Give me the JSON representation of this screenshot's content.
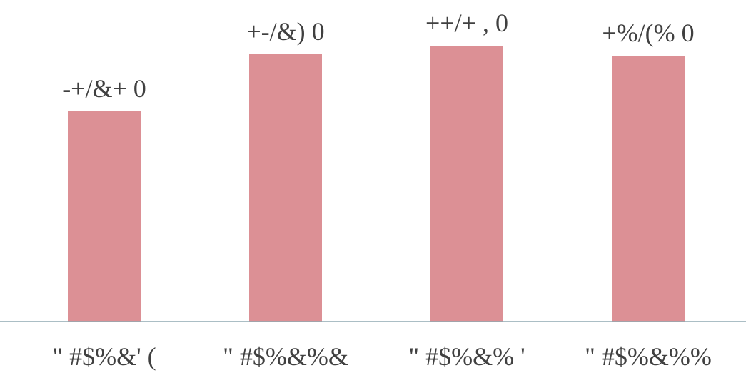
{
  "chart_data": {
    "type": "bar",
    "categories": [
      "\" #$%&' (",
      "\" #$%&%&",
      "\" #$%&% '",
      "\" #$%&%%"
    ],
    "values": [
      295,
      375,
      387,
      373
    ],
    "data_labels": [
      "-+/&+ 0",
      "+-/&) 0",
      "++/+ , 0",
      "+%/(% 0"
    ],
    "title": "",
    "xlabel": "",
    "ylabel": "",
    "ylim": [
      0,
      400
    ],
    "grid": false,
    "legend": "none",
    "bar_color": "#dc9095",
    "axis_color": "#8fa9b2",
    "label_color": "#404040"
  }
}
